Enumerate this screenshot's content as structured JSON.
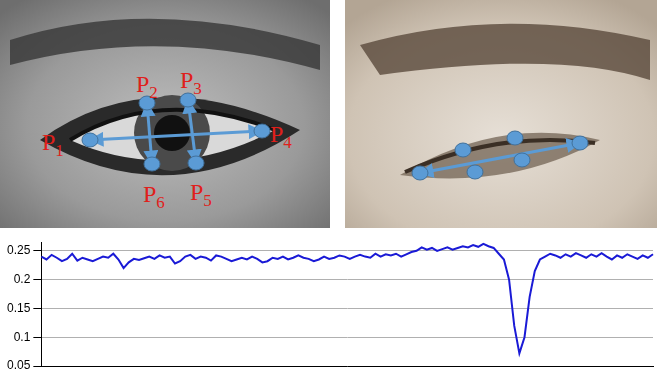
{
  "figure": {
    "landmarks": [
      "P1",
      "P2",
      "P3",
      "P4",
      "P5",
      "P6"
    ]
  },
  "chart_data": {
    "type": "line",
    "color": "#1a1ad6",
    "grid": true,
    "tick_labels": "y",
    "ylim": [
      0.05,
      0.265
    ],
    "yticks": [
      0.05,
      0.1,
      0.15,
      0.2,
      0.25
    ],
    "values": [
      0.24,
      0.235,
      0.243,
      0.238,
      0.232,
      0.236,
      0.245,
      0.233,
      0.238,
      0.235,
      0.232,
      0.236,
      0.24,
      0.238,
      0.245,
      0.235,
      0.22,
      0.23,
      0.236,
      0.234,
      0.237,
      0.24,
      0.236,
      0.242,
      0.238,
      0.24,
      0.228,
      0.232,
      0.24,
      0.243,
      0.236,
      0.24,
      0.238,
      0.233,
      0.242,
      0.24,
      0.236,
      0.232,
      0.235,
      0.238,
      0.235,
      0.24,
      0.236,
      0.23,
      0.232,
      0.238,
      0.236,
      0.24,
      0.235,
      0.238,
      0.242,
      0.238,
      0.236,
      0.232,
      0.235,
      0.24,
      0.236,
      0.238,
      0.242,
      0.24,
      0.236,
      0.24,
      0.243,
      0.24,
      0.238,
      0.245,
      0.24,
      0.244,
      0.242,
      0.245,
      0.24,
      0.244,
      0.248,
      0.25,
      0.256,
      0.252,
      0.255,
      0.25,
      0.253,
      0.256,
      0.252,
      0.255,
      0.258,
      0.256,
      0.26,
      0.257,
      0.262,
      0.258,
      0.255,
      0.245,
      0.235,
      0.2,
      0.12,
      0.072,
      0.1,
      0.17,
      0.215,
      0.235,
      0.24,
      0.245,
      0.242,
      0.238,
      0.244,
      0.24,
      0.246,
      0.242,
      0.238,
      0.244,
      0.24,
      0.246,
      0.24,
      0.235,
      0.242,
      0.238,
      0.244,
      0.24,
      0.236,
      0.242,
      0.238,
      0.244
    ]
  }
}
